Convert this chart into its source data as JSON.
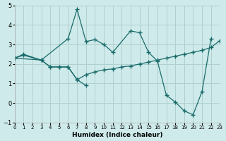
{
  "xlabel": "Humidex (Indice chaleur)",
  "xlim": [
    0,
    23
  ],
  "ylim": [
    -1,
    5
  ],
  "xticks": [
    0,
    1,
    2,
    3,
    4,
    5,
    6,
    7,
    8,
    9,
    10,
    11,
    12,
    13,
    14,
    15,
    16,
    17,
    18,
    19,
    20,
    21,
    22,
    23
  ],
  "yticks": [
    -1,
    0,
    1,
    2,
    3,
    4,
    5
  ],
  "bg_color": "#cfeaea",
  "grid_color": "#b0d0d0",
  "line_color": "#1a6b6b",
  "line1_x": [
    0,
    1,
    3,
    6,
    7,
    8,
    9,
    10,
    11,
    13,
    14,
    15,
    16,
    17,
    18,
    19,
    20,
    21,
    22
  ],
  "line1_y": [
    2.3,
    2.5,
    2.2,
    3.3,
    4.8,
    3.15,
    3.25,
    3.0,
    2.6,
    3.7,
    3.6,
    2.6,
    2.15,
    0.4,
    0.05,
    -0.4,
    -0.6,
    0.6,
    3.3
  ],
  "line2_x": [
    0,
    3,
    4,
    5,
    6,
    7,
    8
  ],
  "line2_y": [
    2.3,
    2.2,
    1.85,
    1.85,
    1.85,
    1.2,
    0.9
  ],
  "line3_x": [
    0,
    1,
    3,
    4,
    5,
    6,
    7,
    8,
    9,
    10,
    11,
    12,
    13,
    14,
    15,
    16,
    17,
    18,
    19,
    20,
    21,
    22,
    23
  ],
  "line3_y": [
    2.3,
    2.45,
    2.2,
    1.85,
    1.85,
    1.85,
    1.2,
    1.45,
    1.6,
    1.7,
    1.75,
    1.85,
    1.9,
    2.0,
    2.1,
    2.2,
    2.3,
    2.4,
    2.5,
    2.6,
    2.7,
    2.85,
    3.2
  ]
}
